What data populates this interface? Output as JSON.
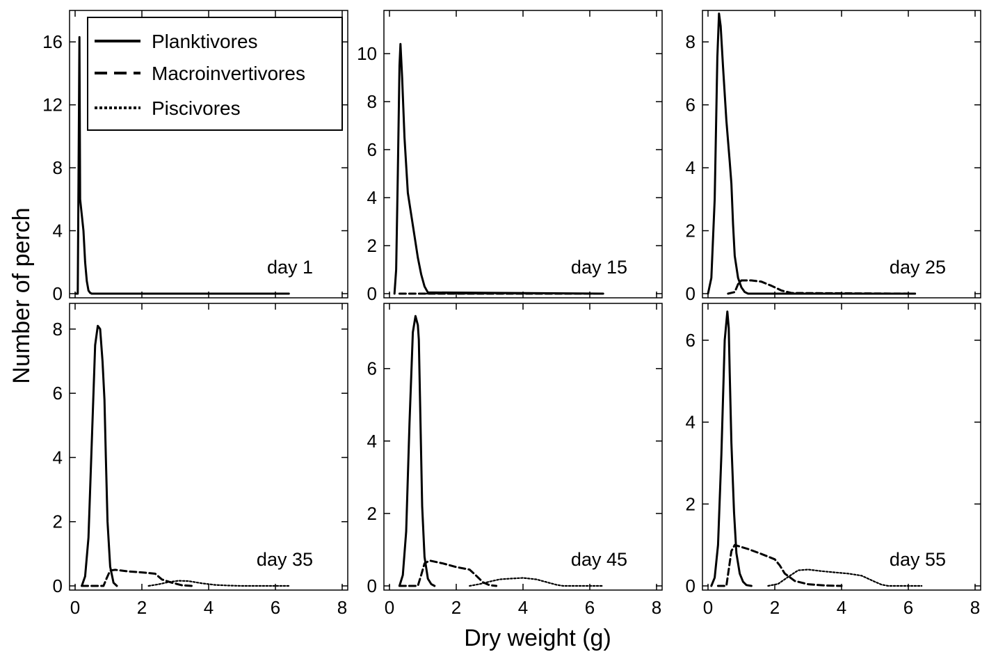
{
  "figure": {
    "xlabel": "Dry weight  (g)",
    "ylabel": "Number of perch"
  },
  "legend": {
    "items": [
      {
        "label": "Planktivores",
        "style": "solid"
      },
      {
        "label": "Macroinvertivores",
        "style": "dashed"
      },
      {
        "label": "Piscivores",
        "style": "dotted"
      }
    ]
  },
  "chart_data": [
    {
      "type": "line",
      "panel_label": "day 1",
      "xlim": [
        0,
        8
      ],
      "ylim": [
        0,
        18
      ],
      "xticks": [
        0,
        2,
        4,
        6,
        8
      ],
      "yticks": [
        0,
        4,
        8,
        12,
        16
      ],
      "series": [
        {
          "name": "Planktivores",
          "style": "solid",
          "x": [
            0.02,
            0.08,
            0.11,
            0.13,
            0.15,
            0.2,
            0.25,
            0.3,
            0.35,
            0.4,
            0.45,
            0.5,
            6.4
          ],
          "y": [
            0,
            0,
            10,
            16.3,
            6,
            5,
            4,
            2,
            0.8,
            0.2,
            0.05,
            0,
            0
          ]
        },
        {
          "name": "Macroinvertivores",
          "style": "dashed",
          "x": [
            0.5,
            6.4
          ],
          "y": [
            0,
            0
          ]
        },
        {
          "name": "Piscivores",
          "style": "dotted",
          "x": [
            0.5,
            6.4
          ],
          "y": [
            0,
            0
          ]
        }
      ]
    },
    {
      "type": "line",
      "panel_label": "day 15",
      "xlim": [
        0,
        8
      ],
      "ylim": [
        0,
        11.8
      ],
      "xticks": [
        0,
        2,
        4,
        6,
        8
      ],
      "yticks": [
        0,
        2,
        4,
        6,
        8,
        10
      ],
      "series": [
        {
          "name": "Planktivores",
          "style": "solid",
          "x": [
            0.15,
            0.2,
            0.25,
            0.3,
            0.33,
            0.38,
            0.45,
            0.55,
            0.65,
            0.75,
            0.85,
            0.95,
            1.05,
            1.15,
            6.4
          ],
          "y": [
            0,
            1,
            5,
            9.5,
            10.4,
            9,
            6.5,
            4.2,
            3.3,
            2.4,
            1.5,
            0.8,
            0.3,
            0.05,
            0
          ]
        },
        {
          "name": "Macroinvertivores",
          "style": "dashed",
          "x": [
            0.3,
            1.1,
            6.4
          ],
          "y": [
            0,
            0,
            0
          ]
        },
        {
          "name": "Piscivores",
          "style": "dotted",
          "x": [
            1.1,
            6.4
          ],
          "y": [
            0,
            0
          ]
        }
      ]
    },
    {
      "type": "line",
      "panel_label": "day 25",
      "xlim": [
        0,
        8
      ],
      "ylim": [
        0,
        9
      ],
      "xticks": [
        0,
        2,
        4,
        6,
        8
      ],
      "yticks": [
        0,
        2,
        4,
        6,
        8
      ],
      "series": [
        {
          "name": "Planktivores",
          "style": "solid",
          "x": [
            0,
            0.1,
            0.2,
            0.28,
            0.33,
            0.38,
            0.45,
            0.55,
            0.65,
            0.7,
            0.75,
            0.8,
            0.9,
            1.0,
            1.1,
            1.2,
            6.2
          ],
          "y": [
            0,
            0.5,
            3,
            7.5,
            8.9,
            8.5,
            7.2,
            5.5,
            4.2,
            3.5,
            2.2,
            1.2,
            0.5,
            0.2,
            0.05,
            0,
            0
          ]
        },
        {
          "name": "Macroinvertivores",
          "style": "dashed",
          "x": [
            0.6,
            0.8,
            0.9,
            1.0,
            1.3,
            1.6,
            1.9,
            2.2,
            2.5,
            6.2
          ],
          "y": [
            0,
            0.05,
            0.3,
            0.42,
            0.42,
            0.38,
            0.25,
            0.1,
            0.02,
            0
          ]
        },
        {
          "name": "Piscivores",
          "style": "dotted",
          "x": [
            2.5,
            6.2
          ],
          "y": [
            0,
            0
          ]
        }
      ]
    },
    {
      "type": "line",
      "panel_label": "day 35",
      "xlim": [
        0,
        8
      ],
      "ylim": [
        0,
        8.8
      ],
      "xticks": [
        0,
        2,
        4,
        6,
        8
      ],
      "yticks": [
        0,
        2,
        4,
        6,
        8
      ],
      "series": [
        {
          "name": "Planktivores",
          "style": "solid",
          "x": [
            0.2,
            0.3,
            0.4,
            0.5,
            0.6,
            0.68,
            0.75,
            0.82,
            0.88,
            0.92,
            0.97,
            1.05,
            1.15,
            1.25
          ],
          "y": [
            0,
            0.3,
            1.5,
            4.5,
            7.5,
            8.1,
            8,
            7,
            5.8,
            4,
            2,
            0.6,
            0.1,
            0
          ]
        },
        {
          "name": "Macroinvertivores",
          "style": "dashed",
          "x": [
            0.2,
            0.85,
            0.95,
            1.05,
            1.2,
            1.6,
            2.0,
            2.4,
            2.6,
            2.9,
            3.2,
            3.5
          ],
          "y": [
            0,
            0,
            0.25,
            0.48,
            0.5,
            0.45,
            0.42,
            0.38,
            0.2,
            0.1,
            0.02,
            0
          ]
        },
        {
          "name": "Piscivores",
          "style": "dotted",
          "x": [
            2.2,
            2.5,
            2.8,
            3.1,
            3.4,
            3.8,
            4.2,
            4.6,
            5.0,
            6.4
          ],
          "y": [
            0,
            0.05,
            0.12,
            0.16,
            0.15,
            0.08,
            0.03,
            0.01,
            0,
            0
          ]
        }
      ]
    },
    {
      "type": "line",
      "panel_label": "day 45",
      "xlim": [
        0,
        8
      ],
      "ylim": [
        0,
        7.8
      ],
      "xticks": [
        0,
        2,
        4,
        6,
        8
      ],
      "yticks": [
        0,
        2,
        4,
        6
      ],
      "series": [
        {
          "name": "Planktivores",
          "style": "solid",
          "x": [
            0.3,
            0.4,
            0.5,
            0.6,
            0.7,
            0.78,
            0.85,
            0.88,
            0.93,
            0.98,
            1.05,
            1.15,
            1.25,
            1.35
          ],
          "y": [
            0,
            0.3,
            1.5,
            4.5,
            7,
            7.45,
            7.2,
            6.8,
            4.5,
            2.2,
            0.8,
            0.2,
            0.05,
            0
          ]
        },
        {
          "name": "Macroinvertivores",
          "style": "dashed",
          "x": [
            0.3,
            0.85,
            0.95,
            1.05,
            1.2,
            1.6,
            2.0,
            2.4,
            2.6,
            2.8,
            3.0,
            3.2
          ],
          "y": [
            0,
            0,
            0.3,
            0.62,
            0.7,
            0.62,
            0.52,
            0.45,
            0.28,
            0.1,
            0.02,
            0
          ]
        },
        {
          "name": "Piscivores",
          "style": "dotted",
          "x": [
            2.4,
            2.7,
            3.0,
            3.3,
            3.6,
            4.0,
            4.4,
            4.8,
            5.0,
            5.2,
            6.4
          ],
          "y": [
            0,
            0.05,
            0.12,
            0.18,
            0.2,
            0.22,
            0.18,
            0.08,
            0.03,
            0,
            0
          ]
        }
      ]
    },
    {
      "type": "line",
      "panel_label": "day 55",
      "xlim": [
        0,
        8
      ],
      "ylim": [
        0,
        6.9
      ],
      "xticks": [
        0,
        2,
        4,
        6,
        8
      ],
      "yticks": [
        0,
        2,
        4,
        6
      ],
      "series": [
        {
          "name": "Planktivores",
          "style": "solid",
          "x": [
            0.1,
            0.2,
            0.3,
            0.4,
            0.5,
            0.58,
            0.62,
            0.65,
            0.7,
            0.78,
            0.85,
            0.95,
            1.05,
            1.15,
            1.3
          ],
          "y": [
            0,
            0.2,
            1.0,
            3.2,
            6.0,
            6.7,
            6.3,
            5.2,
            3.5,
            1.8,
            0.8,
            0.3,
            0.1,
            0.02,
            0
          ]
        },
        {
          "name": "Macroinvertivores",
          "style": "dashed",
          "x": [
            0.3,
            0.55,
            0.62,
            0.7,
            0.8,
            1.2,
            1.6,
            2.0,
            2.15,
            2.3,
            2.6,
            3.0,
            3.5,
            4.0
          ],
          "y": [
            0,
            0,
            0.4,
            0.85,
            1.0,
            0.9,
            0.78,
            0.65,
            0.5,
            0.3,
            0.12,
            0.04,
            0.01,
            0
          ]
        },
        {
          "name": "Piscivores",
          "style": "dotted",
          "x": [
            1.8,
            2.1,
            2.4,
            2.7,
            3.0,
            3.4,
            3.8,
            4.2,
            4.6,
            5.0,
            5.2,
            5.4,
            6.4
          ],
          "y": [
            0,
            0.05,
            0.22,
            0.38,
            0.4,
            0.36,
            0.33,
            0.3,
            0.25,
            0.1,
            0.03,
            0,
            0
          ]
        }
      ]
    }
  ]
}
